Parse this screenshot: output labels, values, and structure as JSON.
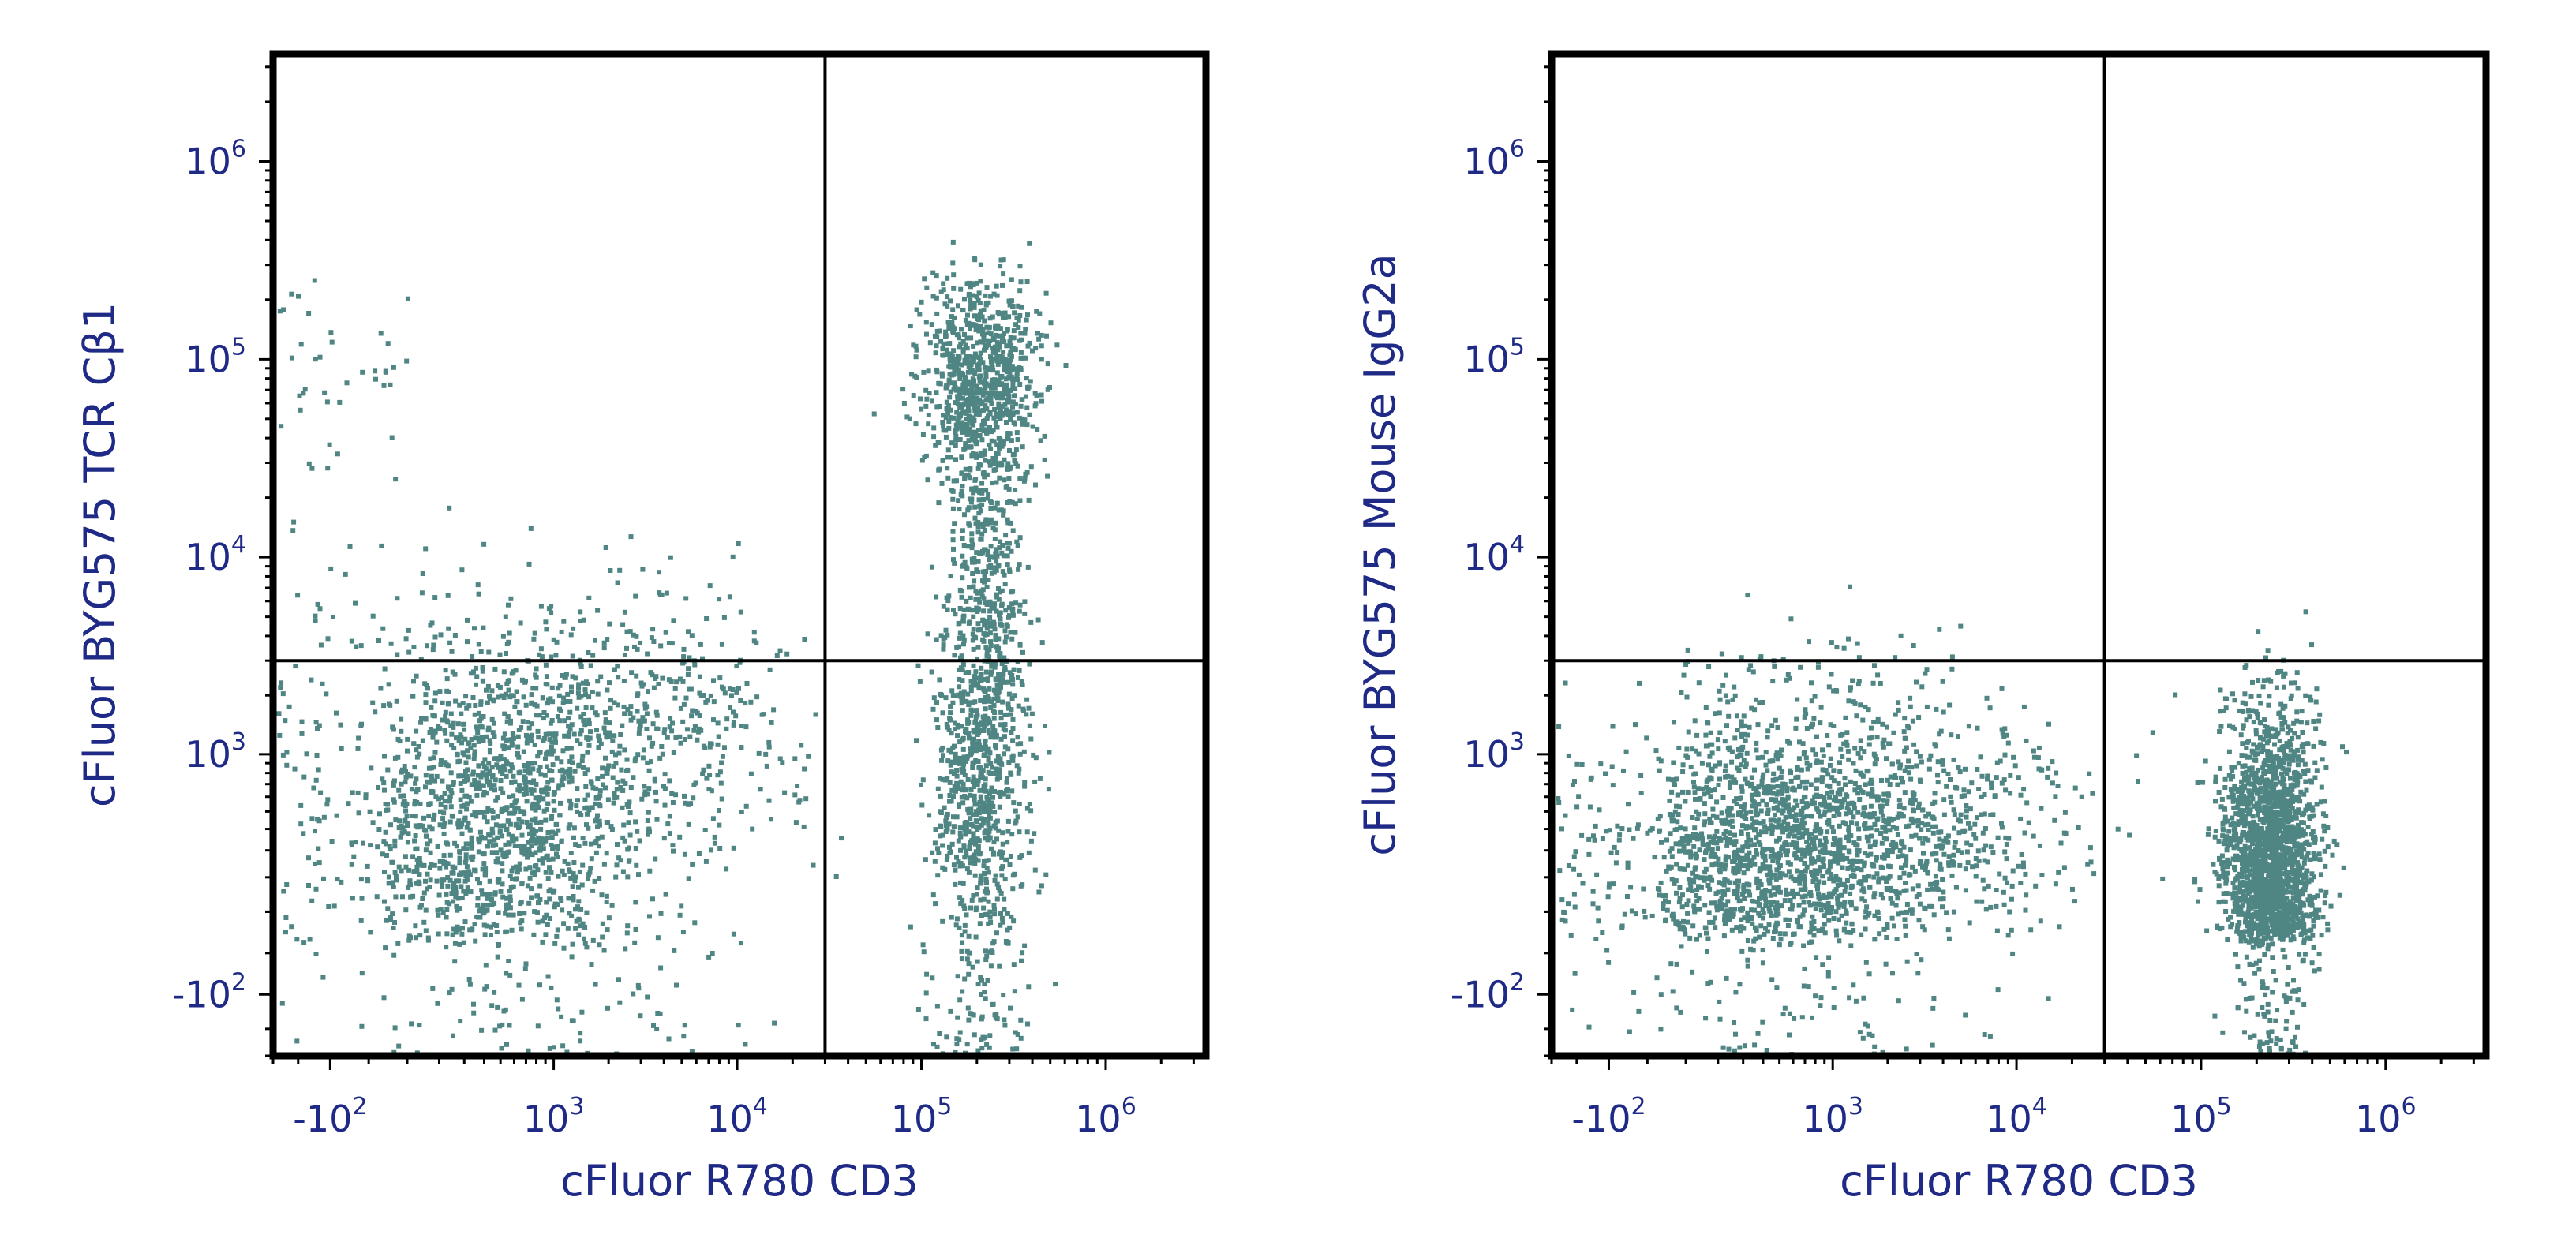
{
  "chart_data": [
    {
      "type": "scatter",
      "xlabel": "cFluor R780 CD3",
      "ylabel": "cFluor BYG575 TCR Cβ1",
      "x_scale": "biexponential",
      "y_scale": "biexponential",
      "xlim": [
        -300,
        3500000
      ],
      "ylim": [
        -300,
        3500000
      ],
      "x_ticks": [
        {
          "value": -100,
          "base": "-10",
          "exp": "2"
        },
        {
          "value": 1000,
          "base": "10",
          "exp": "3"
        },
        {
          "value": 10000,
          "base": "10",
          "exp": "4"
        },
        {
          "value": 100000,
          "base": "10",
          "exp": "5"
        },
        {
          "value": 1000000,
          "base": "10",
          "exp": "6"
        }
      ],
      "y_ticks": [
        {
          "value": -100,
          "base": "-10",
          "exp": "2"
        },
        {
          "value": 1000,
          "base": "10",
          "exp": "3"
        },
        {
          "value": 10000,
          "base": "10",
          "exp": "4"
        },
        {
          "value": 100000,
          "base": "10",
          "exp": "5"
        },
        {
          "value": 1000000,
          "base": "10",
          "exp": "6"
        }
      ],
      "quadrant_gate": {
        "x": 30000,
        "y": 3000
      },
      "point_color": "#4f8583",
      "grid": false,
      "populations": [
        {
          "x_center": 500,
          "y_center": 500,
          "x_spread_decades": 0.45,
          "y_spread_decades": 0.45,
          "relative_size": 0.36
        },
        {
          "x_center": 3000,
          "y_center": 1500,
          "x_spread_decades": 0.45,
          "y_spread_decades": 0.35,
          "relative_size": 0.12
        },
        {
          "x_center": 200000,
          "y_center": 80000,
          "x_spread_decades": 0.15,
          "y_spread_decades": 0.25,
          "relative_size": 0.22
        },
        {
          "x_center": 220000,
          "y_center": 8000,
          "x_spread_decades": 0.12,
          "y_spread_decades": 0.45,
          "relative_size": 0.12
        },
        {
          "x_center": 200000,
          "y_center": 700,
          "x_spread_decades": 0.12,
          "y_spread_decades": 0.4,
          "relative_size": 0.18
        }
      ]
    },
    {
      "type": "scatter",
      "xlabel": "cFluor R780 CD3",
      "ylabel": "cFluor BYG575 Mouse IgG2a",
      "x_scale": "biexponential",
      "y_scale": "biexponential",
      "xlim": [
        -300,
        3500000
      ],
      "ylim": [
        -300,
        3500000
      ],
      "x_ticks": [
        {
          "value": -100,
          "base": "-10",
          "exp": "2"
        },
        {
          "value": 1000,
          "base": "10",
          "exp": "3"
        },
        {
          "value": 10000,
          "base": "10",
          "exp": "4"
        },
        {
          "value": 100000,
          "base": "10",
          "exp": "5"
        },
        {
          "value": 1000000,
          "base": "10",
          "exp": "6"
        }
      ],
      "y_ticks": [
        {
          "value": -100,
          "base": "-10",
          "exp": "2"
        },
        {
          "value": 1000,
          "base": "10",
          "exp": "3"
        },
        {
          "value": 10000,
          "base": "10",
          "exp": "4"
        },
        {
          "value": 100000,
          "base": "10",
          "exp": "5"
        },
        {
          "value": 1000000,
          "base": "10",
          "exp": "6"
        }
      ],
      "quadrant_gate": {
        "x": 30000,
        "y": 3000
      },
      "point_color": "#4f8583",
      "grid": false,
      "populations": [
        {
          "x_center": 500,
          "y_center": 350,
          "x_spread_decades": 0.45,
          "y_spread_decades": 0.4,
          "relative_size": 0.4
        },
        {
          "x_center": 3000,
          "y_center": 450,
          "x_spread_decades": 0.45,
          "y_spread_decades": 0.35,
          "relative_size": 0.12
        },
        {
          "x_center": 230000,
          "y_center": 300,
          "x_spread_decades": 0.13,
          "y_spread_decades": 0.4,
          "relative_size": 0.48
        }
      ]
    }
  ]
}
